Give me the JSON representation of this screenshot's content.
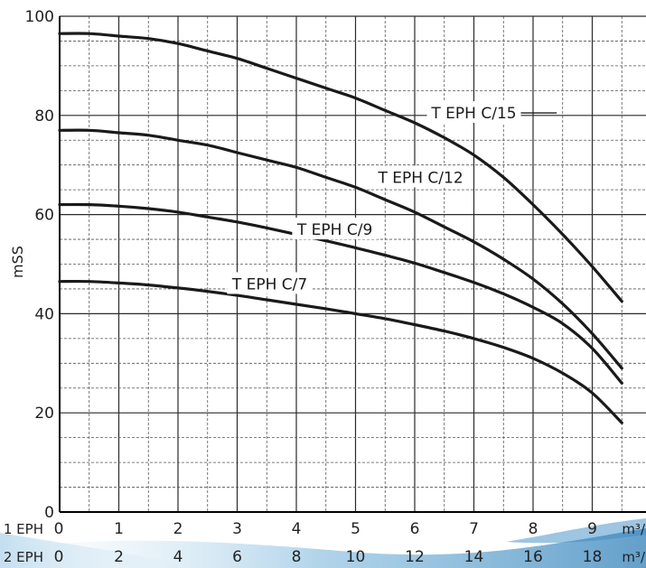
{
  "chart_data": {
    "type": "line",
    "title": "",
    "ylabel": "mSS",
    "ylim": [
      0,
      100
    ],
    "xlim": [
      0,
      9.5
    ],
    "grid": true,
    "y_ticks": [
      "0",
      "20",
      "40",
      "60",
      "80",
      "100"
    ],
    "x_rows": [
      {
        "label": "1 EPH",
        "ticks": [
          "0",
          "1",
          "2",
          "3",
          "4",
          "5",
          "6",
          "7",
          "8",
          "9"
        ],
        "unit": "m³/"
      },
      {
        "label": "2 EPH",
        "ticks": [
          "0",
          "2",
          "4",
          "6",
          "8",
          "10",
          "12",
          "14",
          "16",
          "18"
        ],
        "unit": "m³/"
      }
    ],
    "series": [
      {
        "name": "T EPH C/15",
        "x": [
          0,
          0.5,
          1,
          1.5,
          2,
          2.5,
          3,
          3.5,
          4,
          4.5,
          5,
          5.5,
          6,
          6.5,
          7,
          7.5,
          8,
          8.5,
          9,
          9.5
        ],
        "y": [
          96.5,
          96.5,
          96,
          95.5,
          94.5,
          93,
          91.5,
          89.5,
          87.5,
          85.5,
          83.5,
          81,
          78.5,
          75.5,
          72,
          67.5,
          62,
          56,
          49.5,
          42.5
        ]
      },
      {
        "name": "T EPH C/12",
        "x": [
          0,
          0.5,
          1,
          1.5,
          2,
          2.5,
          3,
          3.5,
          4,
          4.5,
          5,
          5.5,
          6,
          6.5,
          7,
          7.5,
          8,
          8.5,
          9,
          9.5
        ],
        "y": [
          77,
          77,
          76.5,
          76,
          75,
          74,
          72.5,
          71,
          69.5,
          67.5,
          65.5,
          63,
          60.5,
          57.5,
          54.5,
          51,
          47,
          42,
          36,
          29
        ]
      },
      {
        "name": "T EPH C/9",
        "x": [
          0,
          0.5,
          1,
          1.5,
          2,
          2.5,
          3,
          3.5,
          4,
          4.5,
          5,
          5.5,
          6,
          6.5,
          7,
          7.5,
          8,
          8.5,
          9,
          9.5
        ],
        "y": [
          62,
          62,
          61.7,
          61.2,
          60.5,
          59.5,
          58.5,
          57.3,
          56,
          54.7,
          53.3,
          51.8,
          50.2,
          48.3,
          46.3,
          44,
          41.3,
          38,
          33,
          26
        ]
      },
      {
        "name": "T EPH C/7",
        "x": [
          0,
          0.5,
          1,
          1.5,
          2,
          2.5,
          3,
          3.5,
          4,
          4.5,
          5,
          5.5,
          6,
          6.5,
          7,
          7.5,
          8,
          8.5,
          9,
          9.5
        ],
        "y": [
          46.5,
          46.5,
          46.2,
          45.8,
          45.2,
          44.5,
          43.7,
          42.8,
          41.9,
          41,
          40,
          39,
          37.8,
          36.5,
          35,
          33.2,
          31,
          28,
          24,
          18
        ]
      }
    ],
    "annotations": [
      {
        "text": "T EPH C/15",
        "series": "T EPH C/15",
        "x": 7,
        "y": 80.5,
        "leader_from": 6.25,
        "leader_to": 8.4
      },
      {
        "text": "T EPH C/12",
        "series": "T EPH C/12",
        "x": 6.1,
        "y": 67.5
      },
      {
        "text": "T EPH C/9",
        "series": "T EPH C/9",
        "x": 4.65,
        "y": 57
      },
      {
        "text": "T EPH C/7",
        "series": "T EPH C/7",
        "x": 3.55,
        "y": 46
      }
    ]
  }
}
